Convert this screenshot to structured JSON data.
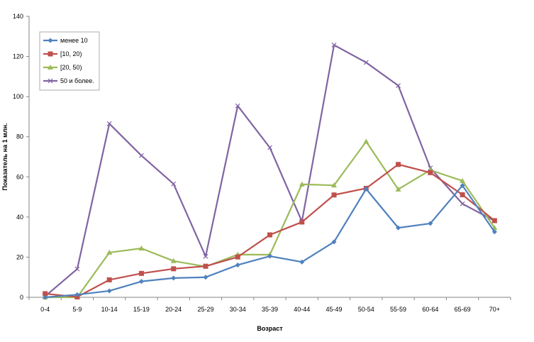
{
  "chart_data": {
    "type": "line",
    "xlabel": "Возраст",
    "ylabel": "Показатель на 1 млн.",
    "ylim": [
      0,
      140
    ],
    "yticks": [
      "0",
      "20",
      "40",
      "60",
      "80",
      "100",
      "120",
      "140"
    ],
    "categories": [
      "0-4",
      "5-9",
      "10-14",
      "15-19",
      "20-24",
      "25-29",
      "30-34",
      "35-39",
      "40-44",
      "45-49",
      "50-54",
      "55-59",
      "60-64",
      "65-69",
      "70+"
    ],
    "grid": false,
    "legend_position": "top-left",
    "series": [
      {
        "name": "менее 10",
        "color": "#4F81BD",
        "marker": "diamond",
        "values": [
          0,
          1.3,
          3.2,
          7.9,
          9.6,
          10.0,
          16.1,
          20.5,
          17.6,
          27.6,
          54.0,
          34.6,
          36.8,
          55.7,
          32.6
        ]
      },
      {
        "name": "[10, 20)",
        "color": "#C0504D",
        "marker": "square",
        "values": [
          1.8,
          0.2,
          8.7,
          11.9,
          14.2,
          15.5,
          20.1,
          31.1,
          37.5,
          51.0,
          54.3,
          66.2,
          62.1,
          51.1,
          38.2
        ]
      },
      {
        "name": "[20, 50)",
        "color": "#9BBB59",
        "marker": "triangle",
        "values": [
          0,
          0,
          22.3,
          24.4,
          18.1,
          15.3,
          21.3,
          21.2,
          56.3,
          55.8,
          77.6,
          53.8,
          63.4,
          58.0,
          34.6
        ]
      },
      {
        "name": "50 и более.",
        "color": "#8064A2",
        "marker": "x",
        "values": [
          0.5,
          14.1,
          86.5,
          70.6,
          56.5,
          20.4,
          95.4,
          74.6,
          37.8,
          125.7,
          117.0,
          105.5,
          64.4,
          46.6,
          38.1
        ]
      }
    ]
  }
}
